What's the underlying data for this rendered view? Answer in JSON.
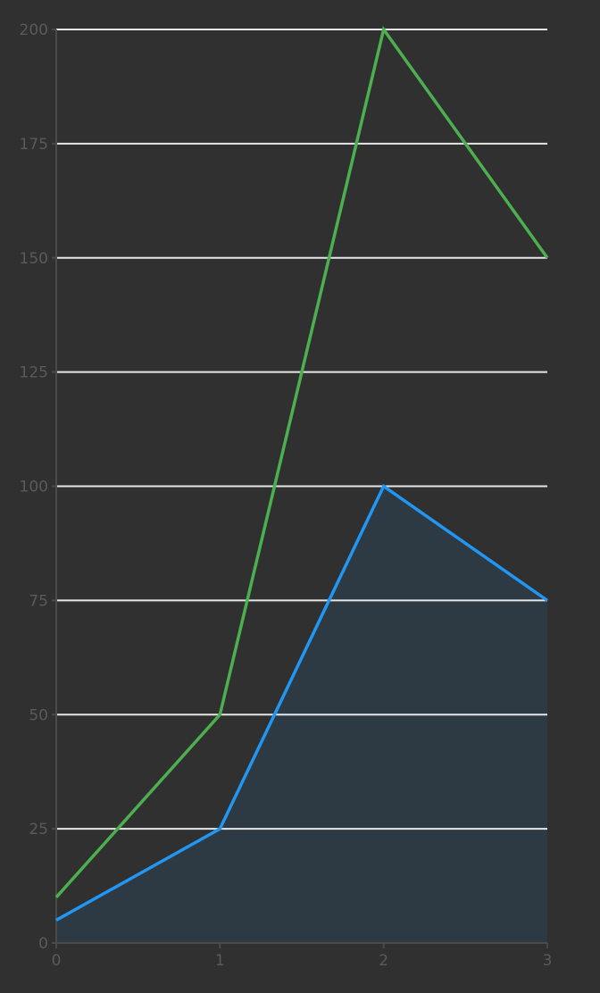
{
  "chart_data": {
    "type": "line",
    "title": "",
    "xlabel": "",
    "ylabel": "",
    "x": [
      0,
      1,
      2,
      3
    ],
    "xlim": [
      0,
      3
    ],
    "ylim": [
      0,
      200
    ],
    "x_ticks": [
      "0",
      "1",
      "2",
      "3"
    ],
    "y_ticks": [
      "0",
      "25",
      "50",
      "75",
      "100",
      "125",
      "150",
      "175",
      "200"
    ],
    "grid": "horizontal",
    "legend": "none",
    "series": [
      {
        "values": [
          10,
          50,
          200,
          150
        ],
        "color": "#4caf50",
        "filled": false
      },
      {
        "values": [
          5,
          25,
          100,
          75
        ],
        "color": "#2196f3",
        "filled": true,
        "fill_color": "#2d3a44"
      }
    ],
    "colors": {
      "background": "#303030",
      "grid": "#e6e6e6",
      "tick_label": "#5a5a5a",
      "axis": "#4a4a4a"
    }
  }
}
